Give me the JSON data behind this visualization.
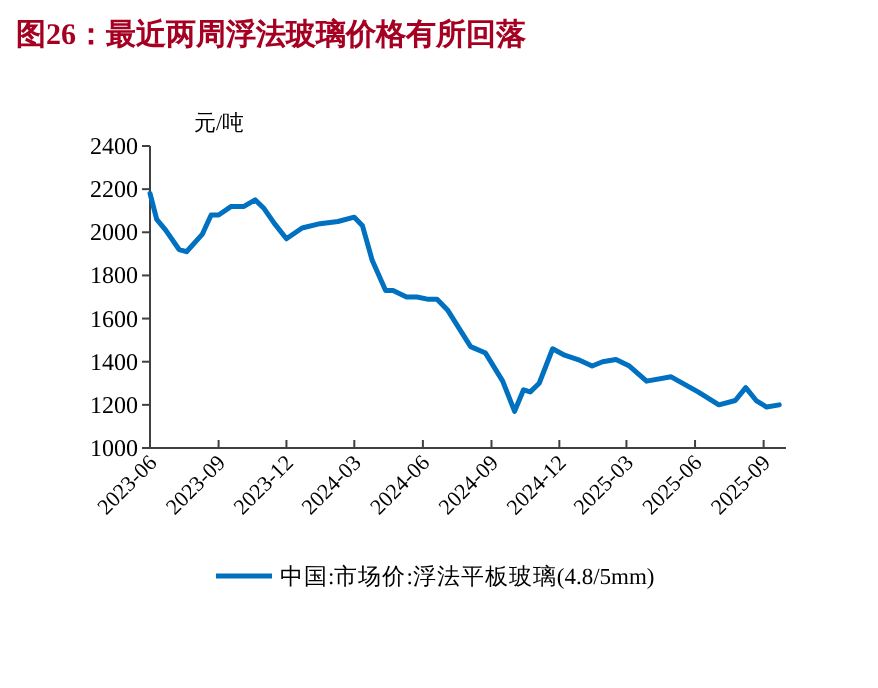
{
  "chart_data": {
    "type": "line",
    "title": "图26：最近两周浮法玻璃价格有所回落",
    "ylabel": "元/吨",
    "xlim": [
      "2023-06-01",
      "2025-10-01"
    ],
    "xticks": [
      {
        "value": "2023-06",
        "label": "2023-06"
      },
      {
        "value": "2023-09",
        "label": "2023-09"
      },
      {
        "value": "2023-12",
        "label": "2023-12"
      },
      {
        "value": "2024-03",
        "label": "2024-03"
      },
      {
        "value": "2024-06",
        "label": "2024-06"
      },
      {
        "value": "2024-09",
        "label": "2024-09"
      },
      {
        "value": "2024-12",
        "label": "2024-12"
      },
      {
        "value": "2025-03",
        "label": "2025-03"
      },
      {
        "value": "2025-06",
        "label": "2025-06"
      },
      {
        "value": "2025-09",
        "label": "2025-09"
      }
    ],
    "ylim": [
      1000,
      2400
    ],
    "yticks": [
      1000,
      1200,
      1400,
      1600,
      1800,
      2000,
      2200,
      2400
    ],
    "grid": false,
    "legend": "bottom",
    "marker": "none",
    "line_style": "solid",
    "series": [
      {
        "name": "中国:市场价:浮法平板玻璃(4.8/5mm)",
        "color": "#0070c0",
        "x": [
          "2023-06-01",
          "2023-06-10",
          "2023-06-22",
          "2023-07-10",
          "2023-07-20",
          "2023-08-10",
          "2023-08-22",
          "2023-09-01",
          "2023-09-18",
          "2023-10-05",
          "2023-10-20",
          "2023-11-01",
          "2023-11-15",
          "2023-12-01",
          "2023-12-22",
          "2024-01-15",
          "2024-02-08",
          "2024-03-01",
          "2024-03-12",
          "2024-03-25",
          "2024-04-12",
          "2024-04-22",
          "2024-05-10",
          "2024-05-24",
          "2024-06-07",
          "2024-06-20",
          "2024-07-04",
          "2024-08-04",
          "2024-08-24",
          "2024-09-16",
          "2024-10-02",
          "2024-10-14",
          "2024-10-23",
          "2024-11-04",
          "2024-11-22",
          "2024-12-08",
          "2024-12-26",
          "2025-01-14",
          "2025-01-28",
          "2025-02-15",
          "2025-03-05",
          "2025-03-28",
          "2025-04-30",
          "2025-06-05",
          "2025-07-03",
          "2025-07-25",
          "2025-08-08",
          "2025-08-22",
          "2025-09-05",
          "2025-09-22"
        ],
        "values": [
          2180,
          2060,
          2010,
          1920,
          1910,
          1990,
          2080,
          2080,
          2120,
          2120,
          2150,
          2110,
          2040,
          1970,
          2020,
          2040,
          2050,
          2070,
          2030,
          1870,
          1730,
          1730,
          1700,
          1700,
          1690,
          1690,
          1640,
          1470,
          1440,
          1310,
          1170,
          1270,
          1260,
          1300,
          1460,
          1430,
          1410,
          1380,
          1400,
          1410,
          1380,
          1310,
          1330,
          1260,
          1200,
          1220,
          1280,
          1220,
          1190,
          1200
        ]
      }
    ]
  }
}
